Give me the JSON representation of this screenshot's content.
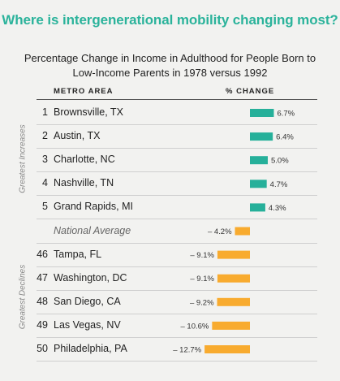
{
  "headline": "Where is intergenerational mobility changing most?",
  "chart_data": {
    "type": "bar",
    "title_line1": "Percentage Change in Income in Adulthood for People Born to",
    "title_line2": "Low-Income Parents in 1978 versus 1992",
    "col_metro": "METRO AREA",
    "col_change": "% CHANGE",
    "group_increases": "Greatest Increases",
    "group_declines": "Greatest Declines",
    "rows": [
      {
        "rank": "1",
        "metro": "Brownsville, TX",
        "value": 6.7,
        "label": "6.7%"
      },
      {
        "rank": "2",
        "metro": "Austin, TX",
        "value": 6.4,
        "label": "6.4%"
      },
      {
        "rank": "3",
        "metro": "Charlotte, NC",
        "value": 5.0,
        "label": "5.0%"
      },
      {
        "rank": "4",
        "metro": "Nashville, TN",
        "value": 4.7,
        "label": "4.7%"
      },
      {
        "rank": "5",
        "metro": "Grand Rapids, MI",
        "value": 4.3,
        "label": "4.3%"
      },
      {
        "rank": "",
        "metro": "National Average",
        "value": -4.2,
        "label": "– 4.2%",
        "average": true
      },
      {
        "rank": "46",
        "metro": "Tampa, FL",
        "value": -9.1,
        "label": "– 9.1%"
      },
      {
        "rank": "47",
        "metro": "Washington, DC",
        "value": -9.1,
        "label": "– 9.1%"
      },
      {
        "rank": "48",
        "metro": "San Diego, CA",
        "value": -9.2,
        "label": "– 9.2%"
      },
      {
        "rank": "49",
        "metro": "Las Vegas, NV",
        "value": -10.6,
        "label": "– 10.6%"
      },
      {
        "rank": "50",
        "metro": "Philadelphia, PA",
        "value": -12.7,
        "label": "– 12.7%"
      }
    ],
    "colors": {
      "positive": "#26b09a",
      "negative": "#f8ab2f",
      "headline": "#2bb39b"
    }
  }
}
